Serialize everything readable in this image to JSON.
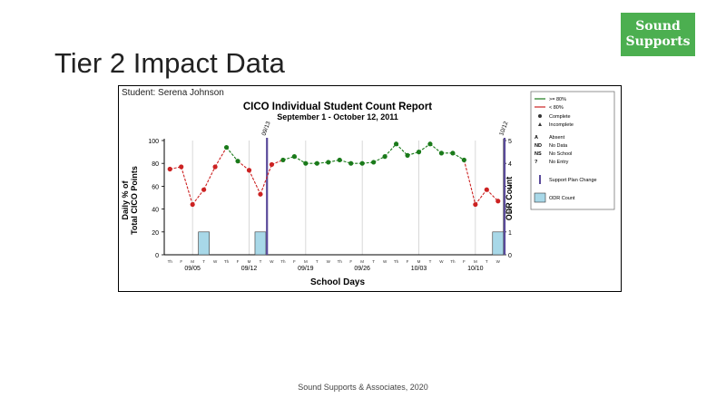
{
  "slide": {
    "title": "Tier 2 Impact Data",
    "footer": "Sound Supports & Associates, 2020",
    "logo": "Sound Supports"
  },
  "colors": {
    "above": "#1a7a1a",
    "below": "#cc2222",
    "phase": "#5a4a9a",
    "odr_bar": "#a8d8e8",
    "logo_bg": "#4caf50"
  },
  "chart_data": {
    "type": "line",
    "student_label": "Student: Serena Johnson",
    "title": "CICO Individual Student Count Report",
    "subtitle": "September 1 - October 12, 2011",
    "xlabel": "School Days",
    "ylabel_left": [
      "Daily % of",
      "Total CICO Points"
    ],
    "ylabel_right": "ODR Count",
    "ylim_left": [
      0,
      100
    ],
    "ylim_right": [
      0,
      5
    ],
    "yticks_left": [
      "0",
      "20",
      "40",
      "60",
      "80",
      "100"
    ],
    "yticks_right": [
      "0",
      "1",
      "2",
      "3",
      "4",
      "5"
    ],
    "date_labels": [
      "09/05",
      "09/12",
      "09/19",
      "09/26",
      "10/03",
      "10/10"
    ],
    "date_label_days": [
      3,
      8,
      13,
      18,
      23,
      28
    ],
    "day_letters": [
      "Th",
      "F",
      "M",
      "T",
      "W",
      "Th",
      "F",
      "M",
      "T",
      "W",
      "Th",
      "F",
      "M",
      "T",
      "W",
      "Th",
      "F",
      "M",
      "T",
      "W",
      "Th",
      "F",
      "M",
      "T",
      "W",
      "Th",
      "F",
      "M",
      "T",
      "W"
    ],
    "threshold": 80,
    "series": [
      {
        "values": [
          75,
          77,
          44,
          57,
          77,
          94,
          82,
          74,
          53,
          79,
          83,
          86,
          80,
          80,
          81,
          83,
          80,
          80,
          81,
          86,
          97,
          87,
          90,
          97,
          89,
          89,
          83,
          44,
          57,
          47
        ]
      }
    ],
    "odr_counts": [
      0,
      0,
      0,
      1,
      0,
      0,
      0,
      0,
      1,
      0,
      0,
      0,
      0,
      0,
      0,
      0,
      0,
      0,
      0,
      0,
      0,
      0,
      0,
      0,
      0,
      0,
      0,
      0,
      0,
      1
    ],
    "phase_changes": [
      {
        "after_day": 9,
        "label": "09/13"
      },
      {
        "after_day": 30,
        "label": "10/12"
      }
    ],
    "legend": {
      "above": ">= 80%",
      "below": "< 80%",
      "complete": "Complete",
      "incomplete": "Incomplete",
      "codes": [
        {
          "code": "A",
          "text": "Absent"
        },
        {
          "code": "ND",
          "text": "No Data"
        },
        {
          "code": "NS",
          "text": "No School"
        },
        {
          "code": "?",
          "text": "No Entry"
        }
      ],
      "phase": "Support Plan Change",
      "odr": "ODR Count"
    }
  }
}
